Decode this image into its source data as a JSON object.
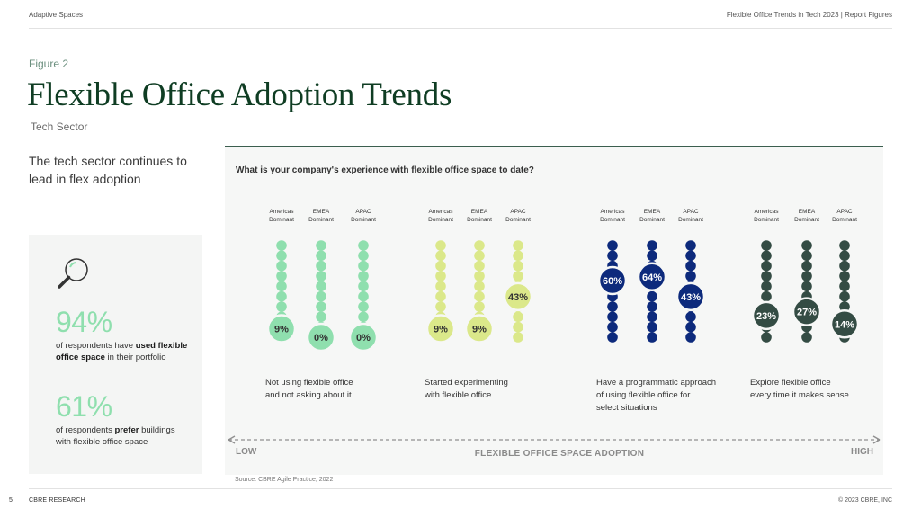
{
  "header": {
    "left": "Adaptive Spaces",
    "right": "Flexible Office Trends in Tech 2023  |  Report Figures"
  },
  "figure_label": "Figure 2",
  "title": "Flexible Office Adoption Trends",
  "subtitle": "Tech Sector",
  "lead_text": "The tech sector continues to lead in flex adoption",
  "stats": [
    {
      "value": "94%",
      "pre": "of respondents have ",
      "bold": "used flexible office space",
      "post": " in their portfolio"
    },
    {
      "value": "61%",
      "pre": "of respondents ",
      "bold": "prefer",
      "post": " buildings with flexible office space"
    }
  ],
  "footer": {
    "page": "5",
    "brand": "CBRE RESEARCH",
    "copyright": "© 2023 CBRE, INC",
    "source": "Source: CBRE Agile Practice, 2022"
  },
  "colors": {
    "group1": "#8fdfae",
    "group2": "#dbe88a",
    "group3": "#0d2a7c",
    "group4": "#344c44",
    "title": "#0f3d23"
  },
  "chart_data": {
    "type": "dot-column",
    "title": "What is your company's experience with flexible office space to date?",
    "xlabel": "FLEXIBLE OFFICE SPACE ADOPTION",
    "axis_low": "LOW",
    "axis_high": "HIGH",
    "groups": [
      {
        "label": "Not using flexible office and not asking about it",
        "label_lines": [
          "Not using flexible office",
          "and not asking about it"
        ],
        "series": [
          {
            "name": "Americas Dominant",
            "value": 9,
            "display": "9%"
          },
          {
            "name": "EMEA Dominant",
            "value": 0,
            "display": "0%"
          },
          {
            "name": "APAC Dominant",
            "value": 0,
            "display": "0%"
          }
        ]
      },
      {
        "label": "Started experimenting with flexible office",
        "label_lines": [
          "Started experimenting",
          "with flexible office"
        ],
        "series": [
          {
            "name": "Americas Dominant",
            "value": 9,
            "display": "9%"
          },
          {
            "name": "EMEA Dominant",
            "value": 9,
            "display": "9%"
          },
          {
            "name": "APAC Dominant",
            "value": 43,
            "display": "43%"
          }
        ]
      },
      {
        "label": "Have a programmatic approach of using flexible office for select situations",
        "label_lines": [
          "Have a programmatic approach",
          "of using flexible office for",
          "select situations"
        ],
        "series": [
          {
            "name": "Americas Dominant",
            "value": 60,
            "display": "60%"
          },
          {
            "name": "EMEA Dominant",
            "value": 64,
            "display": "64%"
          },
          {
            "name": "APAC Dominant",
            "value": 43,
            "display": "43%"
          }
        ]
      },
      {
        "label": "Explore flexible office every time it makes sense",
        "label_lines": [
          "Explore flexible office",
          "every time it makes sense"
        ],
        "series": [
          {
            "name": "Americas Dominant",
            "value": 23,
            "display": "23%"
          },
          {
            "name": "EMEA Dominant",
            "value": 27,
            "display": "27%"
          },
          {
            "name": "APAC Dominant",
            "value": 14,
            "display": "14%"
          }
        ]
      }
    ]
  }
}
